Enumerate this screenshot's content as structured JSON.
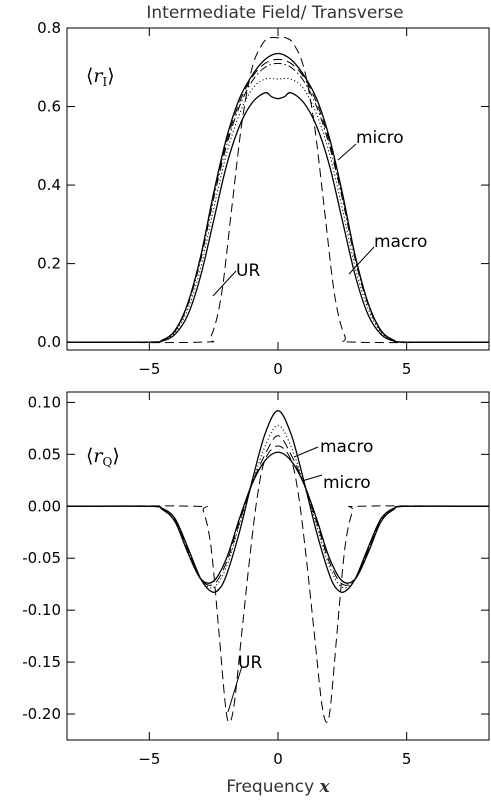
{
  "figure": {
    "title": "Intermediate Field/ Transverse",
    "xlabel_prefix": "Frequency",
    "xlabel_symbol": "x"
  },
  "chart_data": [
    {
      "type": "line",
      "panel_label": "⟨r_I⟩",
      "xlim": [
        -8.2,
        8.2
      ],
      "ylim": [
        -0.02,
        0.8
      ],
      "xticks": [
        -5,
        0,
        5
      ],
      "yticks": [
        0.0,
        0.2,
        0.4,
        0.6,
        0.8
      ],
      "ytick_labels": [
        "0.0",
        "0.2",
        "0.4",
        "0.6",
        "0.8"
      ],
      "annotations": [
        "micro",
        "macro",
        "UR"
      ],
      "series": [
        {
          "name": "micro",
          "style": "solid",
          "x": [
            -8.2,
            -5,
            -4.5,
            -4,
            -3.5,
            -3,
            -2.5,
            -2,
            -1.5,
            -1,
            -0.5,
            0,
            0.5,
            1,
            1.5,
            2,
            2.5,
            3,
            3.5,
            4,
            4.5,
            5,
            8.2
          ],
          "y": [
            0.0,
            0.0,
            0.005,
            0.03,
            0.1,
            0.22,
            0.38,
            0.52,
            0.62,
            0.68,
            0.72,
            0.735,
            0.72,
            0.68,
            0.62,
            0.52,
            0.38,
            0.22,
            0.1,
            0.03,
            0.005,
            0.0,
            0.0
          ]
        },
        {
          "name": "macro",
          "style": "solid",
          "x": [
            -8.2,
            -5,
            -4.5,
            -4,
            -3.5,
            -3,
            -2.5,
            -2,
            -1.5,
            -1,
            -0.5,
            -0.25,
            0,
            0.25,
            0.5,
            1,
            1.5,
            2,
            2.5,
            3,
            3.5,
            4,
            4.5,
            5,
            8.2
          ],
          "y": [
            0.0,
            0.0,
            0.003,
            0.02,
            0.07,
            0.17,
            0.31,
            0.45,
            0.55,
            0.61,
            0.635,
            0.625,
            0.62,
            0.625,
            0.635,
            0.61,
            0.55,
            0.45,
            0.31,
            0.17,
            0.07,
            0.02,
            0.003,
            0.0,
            0.0
          ]
        },
        {
          "name": "",
          "style": "dotted",
          "x": [
            -8.2,
            -5,
            -4.5,
            -4,
            -3.5,
            -3,
            -2.5,
            -2,
            -1.5,
            -1,
            -0.5,
            0,
            0.5,
            1,
            1.5,
            2,
            2.5,
            3,
            3.5,
            4,
            4.5,
            5,
            8.2
          ],
          "y": [
            0.0,
            0.0,
            0.004,
            0.025,
            0.085,
            0.19,
            0.34,
            0.48,
            0.58,
            0.645,
            0.67,
            0.67,
            0.67,
            0.645,
            0.58,
            0.48,
            0.34,
            0.19,
            0.085,
            0.025,
            0.004,
            0.0,
            0.0
          ]
        },
        {
          "name": "",
          "style": "dashdot",
          "x": [
            -8.2,
            -5,
            -4.5,
            -4,
            -3.5,
            -3,
            -2.5,
            -2,
            -1.5,
            -1,
            -0.5,
            0,
            0.5,
            1,
            1.5,
            2,
            2.5,
            3,
            3.5,
            4,
            4.5,
            5,
            8.2
          ],
          "y": [
            0.0,
            0.0,
            0.005,
            0.028,
            0.095,
            0.21,
            0.365,
            0.5,
            0.6,
            0.665,
            0.7,
            0.71,
            0.7,
            0.665,
            0.6,
            0.5,
            0.365,
            0.21,
            0.095,
            0.028,
            0.005,
            0.0,
            0.0
          ]
        },
        {
          "name": "",
          "style": "dashed",
          "x": [
            -8.2,
            -5,
            -4.5,
            -4,
            -3.5,
            -3,
            -2.5,
            -2,
            -1.5,
            -1,
            -0.5,
            0,
            0.5,
            1,
            1.5,
            2,
            2.5,
            3,
            3.5,
            4,
            4.5,
            5,
            8.2
          ],
          "y": [
            0.0,
            0.0,
            0.005,
            0.03,
            0.1,
            0.22,
            0.375,
            0.51,
            0.61,
            0.675,
            0.71,
            0.72,
            0.71,
            0.675,
            0.61,
            0.51,
            0.375,
            0.22,
            0.1,
            0.03,
            0.005,
            0.0,
            0.0
          ]
        },
        {
          "name": "UR",
          "style": "dashed",
          "x": [
            -8.2,
            -3,
            -2.6,
            -2.2,
            -1.8,
            -1.4,
            -1,
            -0.6,
            -0.3,
            0,
            0.3,
            0.6,
            1,
            1.4,
            1.8,
            2.2,
            2.6,
            3,
            8.2
          ],
          "y": [
            0.0,
            0.0,
            0.015,
            0.12,
            0.34,
            0.56,
            0.7,
            0.76,
            0.775,
            0.775,
            0.775,
            0.76,
            0.7,
            0.56,
            0.34,
            0.12,
            0.015,
            0.0,
            0.0
          ]
        }
      ]
    },
    {
      "type": "line",
      "panel_label": "⟨r_Q⟩",
      "xlim": [
        -8.2,
        8.2
      ],
      "ylim": [
        -0.225,
        0.11
      ],
      "xticks": [
        -5,
        0,
        5
      ],
      "yticks": [
        0.1,
        0.05,
        0.0,
        -0.05,
        -0.1,
        -0.15,
        -0.2
      ],
      "ytick_labels": [
        "0.10",
        "0.05",
        "0.00",
        "-0.05",
        "-0.10",
        "-0.15",
        "-0.20"
      ],
      "annotations": [
        "macro",
        "micro",
        "UR"
      ],
      "series": [
        {
          "name": "macro",
          "style": "solid",
          "x": [
            -8.2,
            -5,
            -4.5,
            -4,
            -3.5,
            -3,
            -2.6,
            -2.3,
            -2,
            -1.5,
            -1,
            -0.5,
            0,
            0.5,
            1,
            1.5,
            2,
            2.3,
            2.6,
            3,
            3.5,
            4,
            4.5,
            5,
            8.2
          ],
          "y": [
            0.0,
            0.0,
            -0.002,
            -0.012,
            -0.04,
            -0.07,
            -0.082,
            -0.08,
            -0.066,
            -0.025,
            0.025,
            0.07,
            0.092,
            0.07,
            0.025,
            -0.025,
            -0.066,
            -0.08,
            -0.082,
            -0.07,
            -0.04,
            -0.012,
            -0.002,
            0.0,
            0.0
          ]
        },
        {
          "name": "micro",
          "style": "solid",
          "x": [
            -8.2,
            -5,
            -4.5,
            -4,
            -3.5,
            -3,
            -2.5,
            -2,
            -1.5,
            -1,
            -0.5,
            0,
            0.5,
            1,
            1.5,
            2,
            2.5,
            3,
            3.5,
            4,
            4.5,
            5,
            8.2
          ],
          "y": [
            0.0,
            0.0,
            -0.003,
            -0.015,
            -0.045,
            -0.07,
            -0.072,
            -0.05,
            -0.012,
            0.022,
            0.044,
            0.052,
            0.044,
            0.022,
            -0.012,
            -0.05,
            -0.072,
            -0.07,
            -0.045,
            -0.015,
            -0.003,
            0.0,
            0.0
          ]
        },
        {
          "name": "",
          "style": "dotted",
          "x": [
            -8.2,
            -5,
            -4.5,
            -4,
            -3.5,
            -3,
            -2.5,
            -2,
            -1.5,
            -1,
            -0.5,
            0,
            0.5,
            1,
            1.5,
            2,
            2.5,
            3,
            3.5,
            4,
            4.5,
            5,
            8.2
          ],
          "y": [
            0.0,
            0.0,
            -0.002,
            -0.013,
            -0.042,
            -0.07,
            -0.078,
            -0.058,
            -0.018,
            0.022,
            0.058,
            0.078,
            0.058,
            0.022,
            -0.018,
            -0.058,
            -0.078,
            -0.07,
            -0.042,
            -0.013,
            -0.002,
            0.0,
            0.0
          ]
        },
        {
          "name": "",
          "style": "dashed",
          "x": [
            -8.2,
            -5,
            -4.5,
            -4,
            -3.5,
            -3,
            -2.5,
            -2,
            -1.5,
            -1,
            -0.5,
            0,
            0.5,
            1,
            1.5,
            2,
            2.5,
            3,
            3.5,
            4,
            4.5,
            5,
            8.2
          ],
          "y": [
            0.0,
            0.0,
            -0.003,
            -0.014,
            -0.043,
            -0.07,
            -0.075,
            -0.054,
            -0.015,
            0.022,
            0.05,
            0.068,
            0.05,
            0.022,
            -0.015,
            -0.054,
            -0.075,
            -0.07,
            -0.043,
            -0.014,
            -0.003,
            0.0,
            0.0
          ]
        },
        {
          "name": "UR",
          "style": "dashed",
          "x": [
            -8.2,
            -3.2,
            -2.9,
            -2.6,
            -2.3,
            -2.05,
            -1.9,
            -1.7,
            -1.4,
            -1.1,
            -0.8,
            -0.5,
            0,
            0.5,
            0.8,
            1.1,
            1.4,
            1.7,
            1.9,
            2.05,
            2.3,
            2.6,
            2.9,
            3.2,
            8.2
          ],
          "y": [
            0.0,
            0.0,
            -0.005,
            -0.04,
            -0.12,
            -0.19,
            -0.208,
            -0.19,
            -0.12,
            -0.05,
            0.01,
            0.045,
            0.058,
            0.045,
            0.01,
            -0.05,
            -0.12,
            -0.19,
            -0.208,
            -0.19,
            -0.12,
            -0.04,
            -0.005,
            0.0,
            0.0
          ]
        }
      ]
    }
  ]
}
